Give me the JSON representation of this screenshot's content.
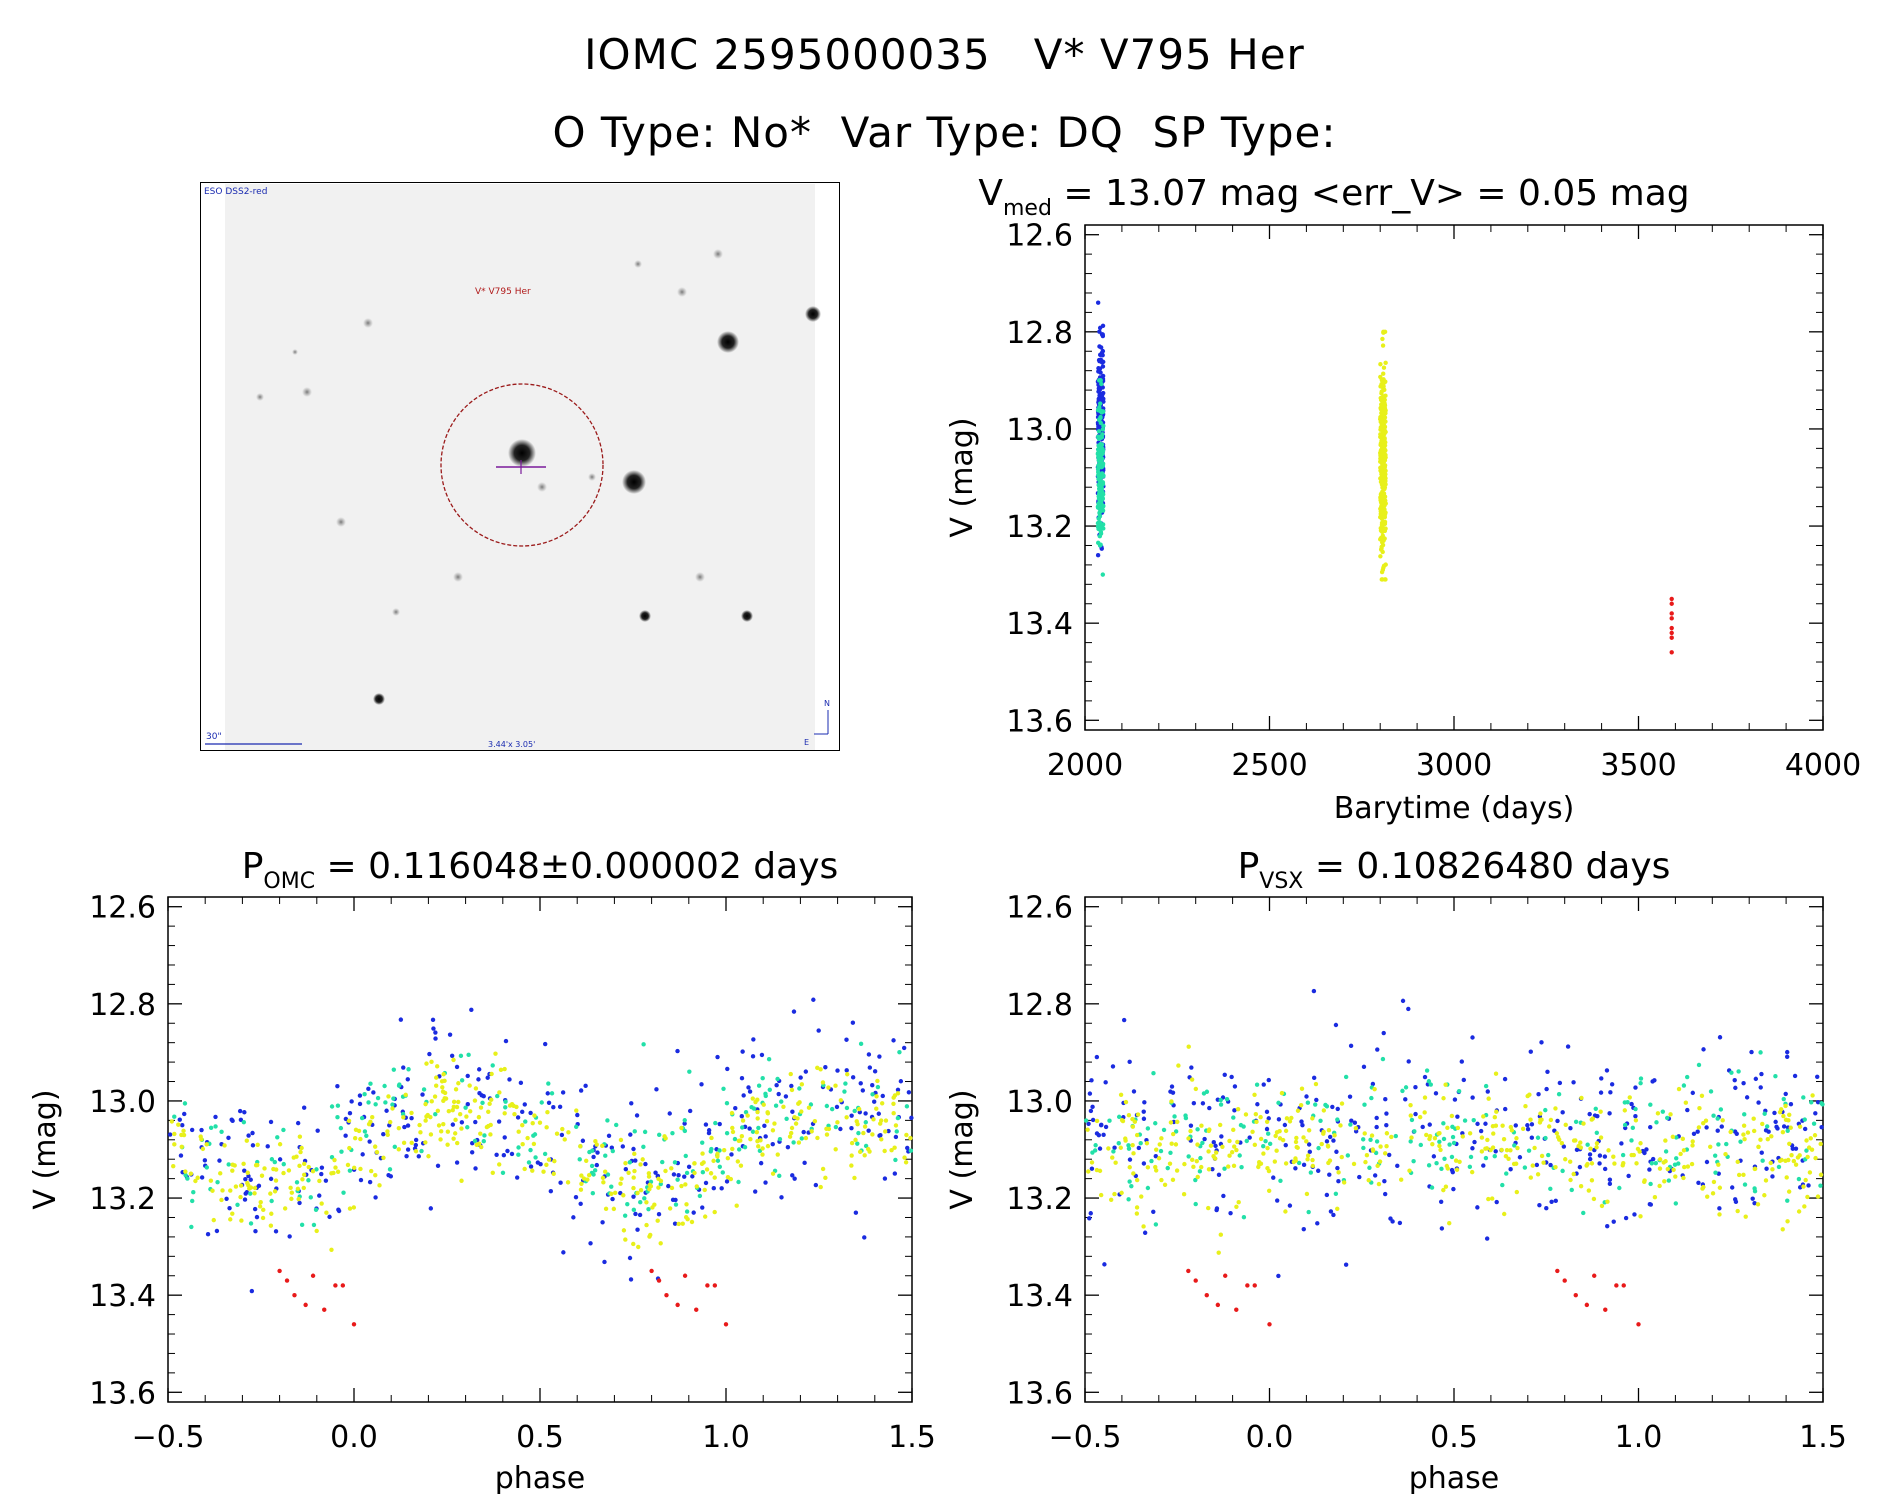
{
  "header": {
    "line1": "IOMC 2595000035   V* V795 Her",
    "line2": "O Type: No*  Var Type: DQ  SP Type:"
  },
  "finder": {
    "survey_label": "ESO DSS2-red",
    "target_label": "V* V795 Her",
    "scale_label": "30\"",
    "fov_label": "3.44'x 3.05'",
    "north_label": "N",
    "east_label": "E"
  },
  "colors": {
    "blue": "#1a2be0",
    "cyan": "#22e0a8",
    "yellow": "#e8f01a",
    "red": "#e81a1a",
    "marker": "#9b1a1a"
  },
  "chart_data": [
    {
      "id": "lightcurve",
      "type": "scatter",
      "title_prefix": "V",
      "title_sub": "med",
      "title_suffix": " = 13.07 mag <err_V> = 0.05 mag",
      "xlabel": "Barytime (days)",
      "ylabel": "V (mag)",
      "xlim": [
        2000,
        4000
      ],
      "ylim": [
        13.62,
        12.58
      ],
      "x_ticks": [
        2000,
        2500,
        3000,
        3500,
        4000
      ],
      "x_tick_labels": [
        "2000",
        "2500",
        "3000",
        "3500",
        "4000"
      ],
      "y_ticks": [
        12.6,
        12.8,
        13.0,
        13.2,
        13.4,
        13.6
      ],
      "y_tick_labels": [
        "12.6",
        "12.8",
        "13.0",
        "13.2",
        "13.4",
        "13.6"
      ],
      "series": [
        {
          "color": "blue",
          "x_range": [
            2035,
            2050
          ],
          "y_range": [
            12.74,
            13.26
          ],
          "count": 220
        },
        {
          "color": "cyan",
          "x_range": [
            2035,
            2050
          ],
          "y_range": [
            12.9,
            13.3
          ],
          "count": 160
        },
        {
          "color": "yellow",
          "x_range": [
            2800,
            2815
          ],
          "y_range": [
            12.8,
            13.31
          ],
          "count": 320
        },
        {
          "color": "red",
          "x": [
            3590,
            3590,
            3590,
            3590,
            3590,
            3590,
            3590,
            3590
          ],
          "y": [
            13.35,
            13.36,
            13.38,
            13.39,
            13.41,
            13.42,
            13.43,
            13.46
          ]
        }
      ]
    },
    {
      "id": "phase_omc",
      "type": "scatter",
      "title_prefix": "P",
      "title_sub": "OMC",
      "title_suffix": " = 0.116048±0.000002 days",
      "xlabel": "phase",
      "ylabel": "V (mag)",
      "xlim": [
        -0.5,
        1.5
      ],
      "ylim": [
        13.62,
        12.58
      ],
      "x_ticks": [
        -0.5,
        0.0,
        0.5,
        1.0,
        1.5
      ],
      "x_tick_labels": [
        "−0.5",
        "0.0",
        "0.5",
        "1.0",
        "1.5"
      ],
      "y_ticks": [
        12.6,
        12.8,
        13.0,
        13.2,
        13.4,
        13.6
      ],
      "y_tick_labels": [
        "12.6",
        "12.8",
        "13.0",
        "13.2",
        "13.4",
        "13.6"
      ],
      "model": {
        "mean": 13.07,
        "amplitude": 0.08,
        "peak_phase": 0.28,
        "scatter_blue": 0.09,
        "scatter_cyan": 0.06,
        "scatter_yellow": 0.05,
        "offset_yellow": 0.03
      },
      "series": [
        {
          "color": "blue",
          "count": 340
        },
        {
          "color": "cyan",
          "count": 220
        },
        {
          "color": "yellow",
          "count": 420
        },
        {
          "color": "red",
          "x": [
            -0.2,
            -0.18,
            -0.16,
            -0.13,
            -0.11,
            -0.08,
            -0.05,
            -0.03,
            0.0
          ],
          "y": [
            13.35,
            13.37,
            13.4,
            13.42,
            13.36,
            13.43,
            13.38,
            13.38,
            13.46
          ]
        }
      ]
    },
    {
      "id": "phase_vsx",
      "type": "scatter",
      "title_prefix": "P",
      "title_sub": "VSX",
      "title_suffix": " = 0.10826480 days",
      "xlabel": "phase",
      "ylabel": "V (mag)",
      "xlim": [
        -0.5,
        1.5
      ],
      "ylim": [
        13.62,
        12.58
      ],
      "x_ticks": [
        -0.5,
        0.0,
        0.5,
        1.0,
        1.5
      ],
      "x_tick_labels": [
        "−0.5",
        "0.0",
        "0.5",
        "1.0",
        "1.5"
      ],
      "y_ticks": [
        12.6,
        12.8,
        13.0,
        13.2,
        13.4,
        13.6
      ],
      "y_tick_labels": [
        "12.6",
        "12.8",
        "13.0",
        "13.2",
        "13.4",
        "13.6"
      ],
      "model": {
        "mean": 13.07,
        "amplitude": 0.0,
        "peak_phase": 0.0,
        "scatter_blue": 0.1,
        "scatter_cyan": 0.07,
        "scatter_yellow": 0.06,
        "offset_yellow": 0.03
      },
      "series": [
        {
          "color": "blue",
          "count": 340
        },
        {
          "color": "cyan",
          "count": 220
        },
        {
          "color": "yellow",
          "count": 420
        },
        {
          "color": "red",
          "x": [
            -0.22,
            -0.2,
            -0.17,
            -0.14,
            -0.12,
            -0.09,
            -0.06,
            -0.04,
            0.0
          ],
          "y": [
            13.35,
            13.37,
            13.4,
            13.42,
            13.36,
            13.43,
            13.38,
            13.38,
            13.46
          ]
        }
      ]
    }
  ]
}
